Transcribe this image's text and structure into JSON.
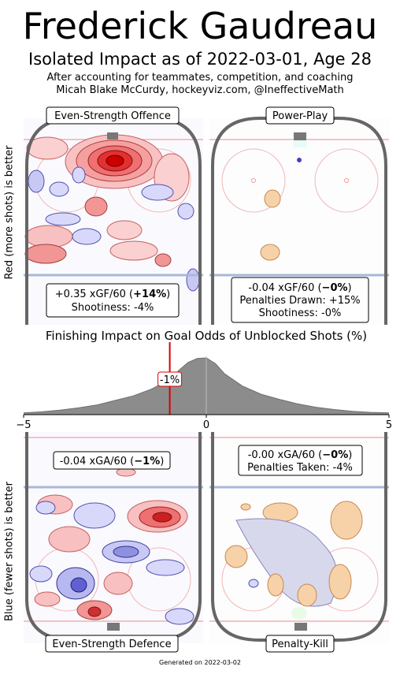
{
  "header": {
    "title": "Frederick Gaudreau",
    "subtitle": "Isolated Impact as of 2022-03-01, Age 28",
    "caption_line1": "After accounting for teammates, competition, and coaching",
    "caption_line2": "Micah Blake McCurdy, hockeyviz.com, @IneffectiveMath"
  },
  "y_labels": {
    "top": "Red (more shots) is better",
    "bottom": "Blue (fewer shots) is better"
  },
  "panels": {
    "es_offence": {
      "title": "Even-Strength Offence",
      "stat_prefix": "+0.35 xGF/60 (",
      "stat_bold": "+14%",
      "stat_suffix": ")",
      "line2": "Shootiness: -4%"
    },
    "power_play": {
      "title": "Power-Play",
      "stat_prefix": "-0.04 xGF/60 (",
      "stat_bold": "−0%",
      "stat_suffix": ")",
      "line2": "Penalties Drawn: +15%",
      "line3": "Shootiness: -0%"
    },
    "es_defence": {
      "title": "Even-Strength Defence",
      "stat_prefix": "-0.04 xGA/60 (",
      "stat_bold": "−1%",
      "stat_suffix": ")"
    },
    "penalty_kill": {
      "title": "Penalty-Kill",
      "stat_prefix": "-0.00 xGA/60 (",
      "stat_bold": "−0%",
      "stat_suffix": ")",
      "line2": "Penalties Taken: -4%"
    }
  },
  "chart_data": {
    "type": "area",
    "title": "Finishing Impact on Goal Odds of Unblocked Shots (%)",
    "xlim": [
      -5,
      5
    ],
    "xticks": [
      "−5",
      "0",
      "5"
    ],
    "player_value": -1,
    "player_label": "-1%",
    "density": {
      "x": [
        -5,
        -4.5,
        -4,
        -3.5,
        -3,
        -2.5,
        -2,
        -1.5,
        -1,
        -0.75,
        -0.5,
        -0.25,
        0,
        0.25,
        0.5,
        1,
        1.5,
        2,
        2.5,
        3,
        3.5,
        4,
        4.5,
        5
      ],
      "y": [
        0.03,
        0.05,
        0.08,
        0.12,
        0.17,
        0.25,
        0.33,
        0.45,
        0.62,
        0.78,
        0.92,
        0.99,
        1.0,
        0.9,
        0.72,
        0.5,
        0.36,
        0.27,
        0.19,
        0.13,
        0.09,
        0.06,
        0.04,
        0.03
      ]
    },
    "colors": {
      "fill": "#8c8c8c",
      "line": "#6e6e6e",
      "marker": "#dd0000"
    }
  },
  "footer": "Generated on 2022-03-02"
}
